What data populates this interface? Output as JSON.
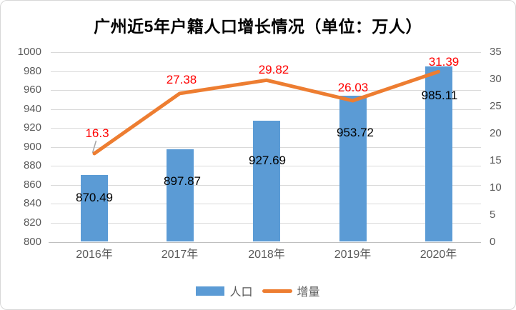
{
  "title": "广州近5年户籍人口增长情况（单位：万人）",
  "chart_data": {
    "type": "bar+line combo",
    "title": "广州近5年户籍人口增长情况（单位：万人）",
    "categories": [
      "2016年",
      "2017年",
      "2018年",
      "2019年",
      "2020年"
    ],
    "series": [
      {
        "name": "人口",
        "type": "bar",
        "axis": "left",
        "values": [
          870.49,
          897.87,
          927.69,
          953.72,
          985.11
        ],
        "labels": [
          "870.49",
          "897.87",
          "927.69",
          "953.72",
          "985.11"
        ],
        "color": "#5B9BD5",
        "label_color": "#000000"
      },
      {
        "name": "增量",
        "type": "line",
        "axis": "right",
        "values": [
          16.3,
          27.38,
          29.82,
          26.03,
          31.39
        ],
        "labels": [
          "16.3",
          "27.38",
          "29.82",
          "26.03",
          "31.39"
        ],
        "color": "#ED7D31",
        "label_color": "#FF0000"
      }
    ],
    "left_axis": {
      "min": 800,
      "max": 1000,
      "step": 20,
      "ticks": [
        "1000",
        "980",
        "960",
        "940",
        "920",
        "900",
        "880",
        "860",
        "840",
        "820",
        "800"
      ]
    },
    "right_axis": {
      "min": 0,
      "max": 35,
      "step": 5,
      "ticks": [
        "35",
        "30",
        "25",
        "20",
        "15",
        "10",
        "5",
        "0"
      ]
    },
    "grid": true,
    "legend_position": "bottom",
    "gridline_color": "#D9D9D9",
    "axis_text_color": "#595959",
    "leader_line_color": "#A6A6A6"
  },
  "legend": {
    "items": [
      {
        "label": "人口",
        "marker": "rect",
        "color": "#5B9BD5"
      },
      {
        "label": "增量",
        "marker": "line",
        "color": "#ED7D31"
      }
    ]
  }
}
